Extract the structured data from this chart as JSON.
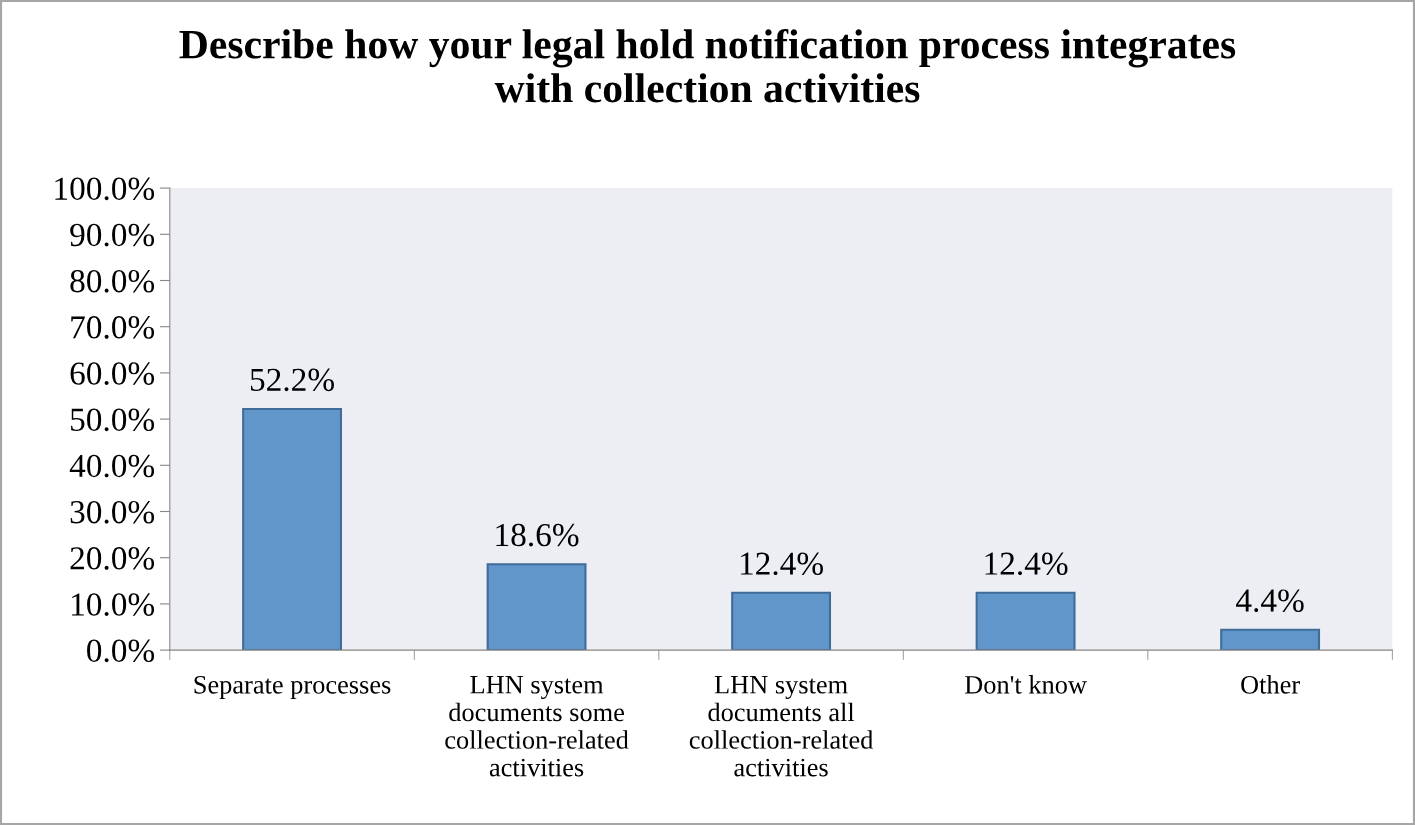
{
  "chart_data": {
    "type": "bar",
    "title": "Describe how your legal hold notification process integrates\nwith collection activities",
    "categories": [
      "Separate processes",
      "LHN system\ndocuments some\ncollection-related\nactivities",
      "LHN system\ndocuments all\ncollection-related\nactivities",
      "Don't know",
      "Other"
    ],
    "values": [
      52.2,
      18.6,
      12.4,
      12.4,
      4.4
    ],
    "value_labels": [
      "52.2%",
      "18.6%",
      "12.4%",
      "12.4%",
      "4.4%"
    ],
    "color": "#6096c9",
    "ylim": [
      0,
      100
    ],
    "yticks": [
      {
        "value": 0,
        "label": "0.0%"
      },
      {
        "value": 10,
        "label": "10.0%"
      },
      {
        "value": 20,
        "label": "20.0%"
      },
      {
        "value": 30,
        "label": "30.0%"
      },
      {
        "value": 40,
        "label": "40.0%"
      },
      {
        "value": 50,
        "label": "50.0%"
      },
      {
        "value": 60,
        "label": "60.0%"
      },
      {
        "value": 70,
        "label": "70.0%"
      },
      {
        "value": 80,
        "label": "80.0%"
      },
      {
        "value": 90,
        "label": "90.0%"
      },
      {
        "value": 100,
        "label": "100.0%"
      }
    ],
    "grid": false,
    "legend": false
  }
}
